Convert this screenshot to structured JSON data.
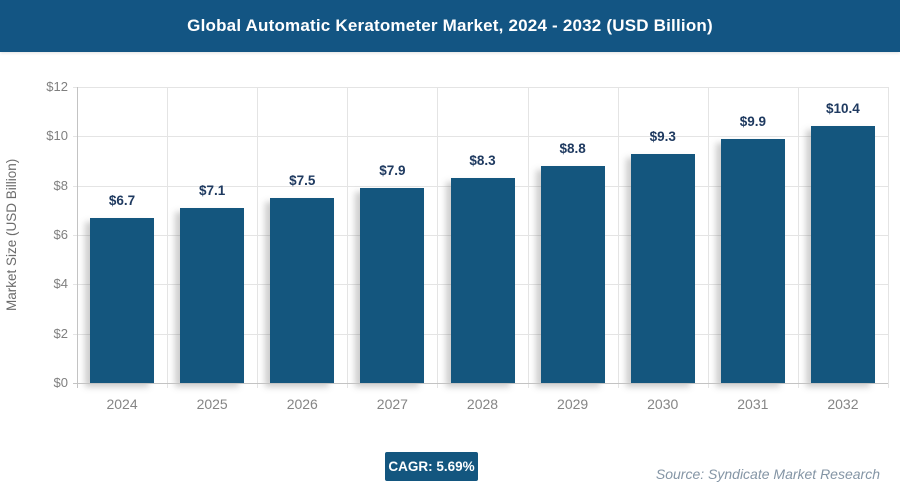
{
  "header": {
    "title": "Global Automatic Keratometer Market, 2024 - 2032 (USD Billion)"
  },
  "chart_data": {
    "type": "bar",
    "title": "Global Automatic Keratometer Market, 2024 - 2032 (USD Billion)",
    "categories": [
      "2024",
      "2025",
      "2026",
      "2027",
      "2028",
      "2029",
      "2030",
      "2031",
      "2032"
    ],
    "values": [
      6.7,
      7.1,
      7.5,
      7.9,
      8.3,
      8.8,
      9.3,
      9.9,
      10.4
    ],
    "value_labels": [
      "$6.7",
      "$7.1",
      "$7.5",
      "$7.9",
      "$8.3",
      "$8.8",
      "$9.3",
      "$9.9",
      "$10.4"
    ],
    "xlabel": "",
    "ylabel": "Market Size (USD Billion)",
    "ylim": [
      0,
      12
    ],
    "ytick_values": [
      0,
      2,
      4,
      6,
      8,
      10,
      12
    ],
    "ytick_labels": [
      "$0",
      "$2",
      "$4",
      "$6",
      "$8",
      "$10",
      "$12"
    ],
    "grid": true,
    "legend": "none"
  },
  "footer": {
    "cagr_label": "CAGR: 5.69%",
    "source": "Source: Syndicate Market Research"
  },
  "colors": {
    "header_bg": "#135583",
    "bar_fill": "#14567E",
    "badge_bg": "#13567F",
    "value_label_text": "#1F3A60",
    "axis_text": "#7F7F7F",
    "source_text": "#8495A5"
  }
}
